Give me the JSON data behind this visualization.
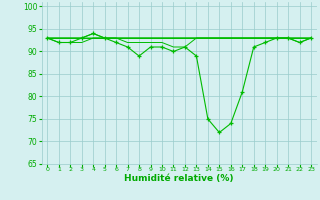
{
  "x": [
    0,
    1,
    2,
    3,
    4,
    5,
    6,
    7,
    8,
    9,
    10,
    11,
    12,
    13,
    14,
    15,
    16,
    17,
    18,
    19,
    20,
    21,
    22,
    23
  ],
  "y_main": [
    93,
    92,
    92,
    93,
    94,
    93,
    92,
    91,
    89,
    91,
    91,
    90,
    91,
    89,
    75,
    72,
    74,
    81,
    91,
    92,
    93,
    93,
    92,
    93
  ],
  "y_line2": [
    93,
    93,
    93,
    93,
    93,
    93,
    93,
    93,
    93,
    93,
    93,
    93,
    93,
    93,
    93,
    93,
    93,
    93,
    93,
    93,
    93,
    93,
    93,
    93
  ],
  "y_line3": [
    93,
    93,
    93,
    93,
    94,
    93,
    93,
    93,
    93,
    93,
    93,
    93,
    93,
    93,
    93,
    93,
    93,
    93,
    93,
    93,
    93,
    93,
    93,
    93
  ],
  "y_line4": [
    93,
    93,
    93,
    93,
    93,
    93,
    93,
    93,
    93,
    93,
    93,
    93,
    93,
    93,
    93,
    93,
    93,
    93,
    93,
    93,
    93,
    93,
    92,
    93
  ],
  "y_line5": [
    93,
    92,
    92,
    92,
    93,
    93,
    93,
    92,
    92,
    92,
    92,
    91,
    91,
    93,
    93,
    93,
    93,
    93,
    93,
    93,
    93,
    93,
    93,
    93
  ],
  "line_color": "#00bb00",
  "bg_color": "#d5f0f0",
  "grid_color": "#99cccc",
  "xlabel": "Humidité relative (%)",
  "xlabel_color": "#00aa00",
  "tick_color": "#00aa00",
  "xlim": [
    -0.5,
    23.5
  ],
  "ylim": [
    65,
    101
  ],
  "yticks": [
    65,
    70,
    75,
    80,
    85,
    90,
    95,
    100
  ],
  "xticks": [
    0,
    1,
    2,
    3,
    4,
    5,
    6,
    7,
    8,
    9,
    10,
    11,
    12,
    13,
    14,
    15,
    16,
    17,
    18,
    19,
    20,
    21,
    22,
    23
  ]
}
